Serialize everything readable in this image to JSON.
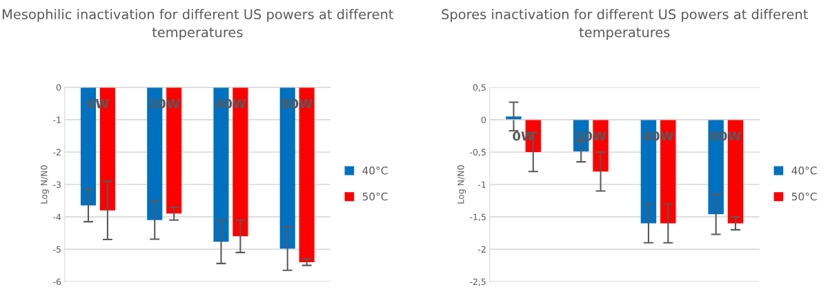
{
  "chart_data": [
    {
      "type": "bar",
      "title": "Mesophilic inactivation for different US powers at different temperatures",
      "ylabel": "Log N/N0",
      "categories": [
        "0W",
        "10W",
        "40W",
        "80W"
      ],
      "series": [
        {
          "name": "40°C",
          "color": "#0070c0",
          "values": [
            -3.65,
            -4.1,
            -4.77,
            -4.98
          ],
          "errors": [
            0.5,
            0.59,
            0.67,
            0.67
          ]
        },
        {
          "name": "50°C",
          "color": "#ff0000",
          "values": [
            -3.8,
            -3.9,
            -4.6,
            -5.4
          ],
          "errors": [
            0.9,
            0.2,
            0.5,
            0.1
          ]
        }
      ],
      "ylim": [
        -6,
        0
      ],
      "yticks": [
        0,
        -1,
        -2,
        -3,
        -4,
        -5,
        -6
      ],
      "grid": "y",
      "legend": "right"
    },
    {
      "type": "bar",
      "title": "Spores inactivation for different US powers at different temperatures",
      "ylabel": "Log N/N0",
      "categories": [
        "0W",
        "10W",
        "40W",
        "80W"
      ],
      "series": [
        {
          "name": "40°C",
          "color": "#0070c0",
          "values": [
            0.05,
            -0.49,
            -1.6,
            -1.46
          ],
          "errors": [
            0.22,
            0.16,
            0.3,
            0.31
          ]
        },
        {
          "name": "50°C",
          "color": "#ff0000",
          "values": [
            -0.5,
            -0.8,
            -1.6,
            -1.6
          ],
          "errors": [
            0.3,
            0.3,
            0.3,
            0.1
          ]
        }
      ],
      "ylim": [
        -2.5,
        0.5
      ],
      "yticks": [
        {
          "value": 0.5,
          "label": "0,5"
        },
        0,
        {
          "value": -0.5,
          "label": "-0,5"
        },
        -1,
        {
          "value": -1.5,
          "label": "-1,5"
        },
        -2,
        {
          "value": -2.5,
          "label": "-2,5"
        }
      ],
      "grid": "y",
      "legend": "right"
    }
  ]
}
